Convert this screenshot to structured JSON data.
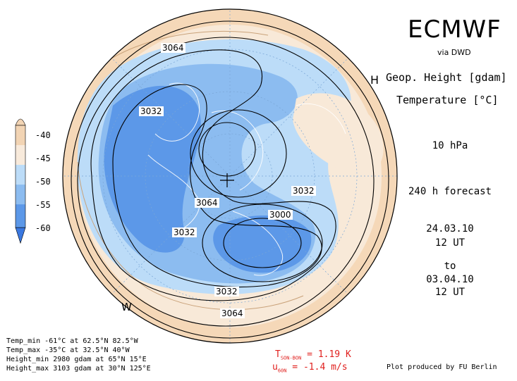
{
  "header": {
    "title": "ECMWF",
    "source": "via DWD",
    "variable1": "Geop. Height [gdam]",
    "variable2": "Temperature [°C]",
    "level": "10 hPa",
    "forecast": "240 h forecast",
    "init_date": "24.03.10",
    "init_time": "12 UT",
    "to_label": "to",
    "valid_date": "03.04.10",
    "valid_time": "12 UT"
  },
  "colorbar": {
    "labels": [
      "-40",
      "-45",
      "-50",
      "-55",
      "-60"
    ],
    "colors": [
      "#f2d4b4",
      "#f8eadb",
      "#bcdcf8",
      "#8cbcf0",
      "#5c98e8",
      "#3a78e0"
    ]
  },
  "contour_labels": [
    "3064",
    "3032",
    "3064",
    "3032",
    "3000",
    "3032",
    "3032",
    "3064"
  ],
  "markers": {
    "high": "H",
    "west": "W"
  },
  "stats": {
    "temp_min": "Temp_min -61°C at 62.5°N 82.5°W",
    "temp_max": "Temp_max -35°C at 32.5°N 40°W",
    "height_min": "Height_min 2980 gdam at 65°N 15°E",
    "height_max": "Height_max 3103 gdam at 30°N 125°E"
  },
  "anomaly": {
    "t_text": "T",
    "t_sub": "SON-BON",
    "t_value": " = 1.19 K",
    "u_text": "u",
    "u_sub": "60N",
    "u_value": " = -1.4 m/s"
  },
  "credit": "Plot produced by FU Berlin"
}
